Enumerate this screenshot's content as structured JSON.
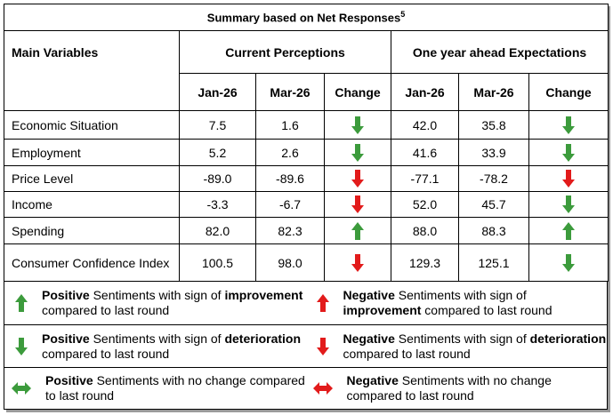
{
  "title": {
    "text": "Summary based on Net Responses",
    "sup": "5"
  },
  "header": {
    "main": "Main Variables",
    "current": "Current Perceptions",
    "ahead": "One year ahead Expectations",
    "periods": [
      "Jan-26",
      "Mar-26"
    ],
    "change": "Change"
  },
  "colors": {
    "green": "#3c9b3c",
    "red": "#e21b1b"
  },
  "rows": [
    {
      "label": "Economic Situation",
      "current": [
        "7.5",
        "1.6"
      ],
      "current_change": {
        "dir": "down",
        "color": "green"
      },
      "ahead": [
        "42.0",
        "35.8"
      ],
      "ahead_change": {
        "dir": "down",
        "color": "green"
      }
    },
    {
      "label": "Employment",
      "current": [
        "5.2",
        "2.6"
      ],
      "current_change": {
        "dir": "down",
        "color": "green"
      },
      "ahead": [
        "41.6",
        "33.9"
      ],
      "ahead_change": {
        "dir": "down",
        "color": "green"
      }
    },
    {
      "label": "Price Level",
      "current": [
        "-89.0",
        "-89.6"
      ],
      "current_change": {
        "dir": "down",
        "color": "red"
      },
      "ahead": [
        "-77.1",
        "-78.2"
      ],
      "ahead_change": {
        "dir": "down",
        "color": "red"
      }
    },
    {
      "label": "Income",
      "current": [
        "-3.3",
        "-6.7"
      ],
      "current_change": {
        "dir": "down",
        "color": "red"
      },
      "ahead": [
        "52.0",
        "45.7"
      ],
      "ahead_change": {
        "dir": "down",
        "color": "green"
      }
    },
    {
      "label": "Spending",
      "current": [
        "82.0",
        "82.3"
      ],
      "current_change": {
        "dir": "up",
        "color": "green"
      },
      "ahead": [
        "88.0",
        "88.3"
      ],
      "ahead_change": {
        "dir": "up",
        "color": "green"
      }
    },
    {
      "label": "Consumer Confidence Index",
      "current": [
        "100.5",
        "98.0"
      ],
      "current_change": {
        "dir": "down",
        "color": "red"
      },
      "ahead": [
        "129.3",
        "125.1"
      ],
      "ahead_change": {
        "dir": "down",
        "color": "green"
      }
    }
  ],
  "legend": [
    [
      {
        "dir": "up",
        "color": "green",
        "text": [
          {
            "t": "Positive",
            "b": true
          },
          {
            "t": " Sentiments with sign of ",
            "b": false
          },
          {
            "t": "improvement",
            "b": true
          },
          {
            "t": " compared to last round",
            "b": false
          }
        ]
      },
      {
        "dir": "up",
        "color": "red",
        "text": [
          {
            "t": "Negative",
            "b": true
          },
          {
            "t": " Sentiments with sign of ",
            "b": false
          },
          {
            "t": "improvement",
            "b": true
          },
          {
            "t": " compared to last round",
            "b": false
          }
        ]
      }
    ],
    [
      {
        "dir": "down",
        "color": "green",
        "text": [
          {
            "t": "Positive",
            "b": true
          },
          {
            "t": " Sentiments with sign of ",
            "b": false
          },
          {
            "t": "deterioration",
            "b": true
          },
          {
            "t": " compared to last round",
            "b": false
          }
        ]
      },
      {
        "dir": "down",
        "color": "red",
        "text": [
          {
            "t": "Negative",
            "b": true
          },
          {
            "t": " Sentiments with sign of ",
            "b": false
          },
          {
            "t": "deterioration",
            "b": true
          },
          {
            "t": " compared to last round",
            "b": false
          }
        ]
      }
    ],
    [
      {
        "dir": "both",
        "color": "green",
        "text": [
          {
            "t": "Positive",
            "b": true
          },
          {
            "t": " Sentiments with no change compared to last round",
            "b": false
          }
        ]
      },
      {
        "dir": "both",
        "color": "red",
        "text": [
          {
            "t": "Negative",
            "b": true
          },
          {
            "t": " Sentiments with no change compared to last round",
            "b": false
          }
        ]
      }
    ]
  ]
}
